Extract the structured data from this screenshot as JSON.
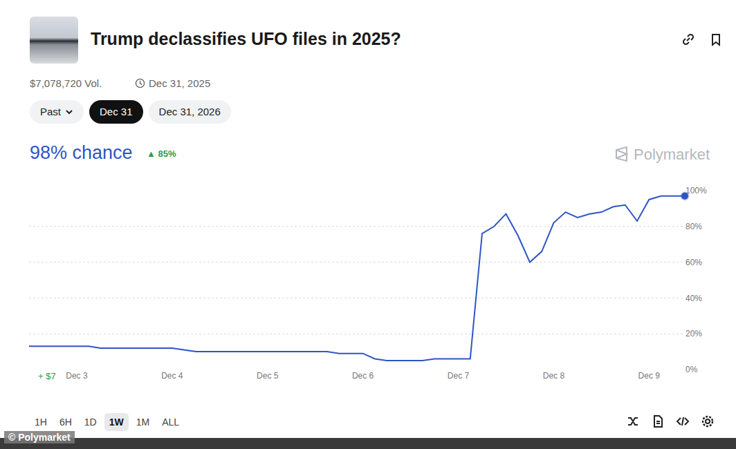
{
  "header": {
    "title": "Trump declassifies UFO files in 2025?",
    "volume": "$7,078,720 Vol.",
    "end_date": "Dec 31, 2025"
  },
  "date_tabs": [
    "Past",
    "Dec 31",
    "Dec 31, 2026"
  ],
  "active_tab": "Dec 31",
  "headline": {
    "value": "98% chance",
    "change": "▲ 85%"
  },
  "brand": "Polymarket",
  "range_buttons": [
    "1H",
    "6H",
    "1D",
    "1W",
    "1M",
    "ALL"
  ],
  "active_range": "1W",
  "credit": "© Polymarket",
  "chart_data": {
    "type": "line",
    "color": "#2e55c5",
    "categories": [
      null,
      null,
      null,
      null,
      "Dec 3",
      null,
      null,
      null,
      null,
      null,
      null,
      null,
      "Dec 4",
      null,
      null,
      null,
      null,
      null,
      null,
      null,
      "Dec 5",
      null,
      null,
      null,
      null,
      null,
      null,
      null,
      "Dec 6",
      null,
      null,
      null,
      null,
      null,
      null,
      null,
      "Dec 7",
      null,
      null,
      null,
      null,
      null,
      null,
      null,
      "Dec 8",
      null,
      null,
      null,
      null,
      null,
      null,
      null,
      "Dec 9",
      null,
      null,
      null
    ],
    "values": [
      13,
      13,
      13,
      13,
      13,
      13,
      12,
      12,
      12,
      12,
      12,
      12,
      12,
      11,
      10,
      10,
      10,
      10,
      10,
      10,
      10,
      10,
      10,
      10,
      10,
      10,
      9,
      9,
      9,
      6,
      5,
      5,
      5,
      5,
      6,
      6,
      6,
      6,
      76,
      80,
      87,
      75,
      60,
      66,
      82,
      88,
      85,
      87,
      88,
      91,
      92,
      83,
      95,
      97,
      97,
      97
    ],
    "ylim": [
      0,
      100
    ],
    "yticks": [
      {
        "value": 0,
        "label": "0%"
      },
      {
        "value": 20,
        "label": "20%"
      },
      {
        "value": 40,
        "label": "40%"
      },
      {
        "value": 60,
        "label": "60%"
      },
      {
        "value": 80,
        "label": "80%"
      },
      {
        "value": 100,
        "label": "100%"
      }
    ],
    "grid": true,
    "annotations": [
      "+ $7"
    ]
  }
}
